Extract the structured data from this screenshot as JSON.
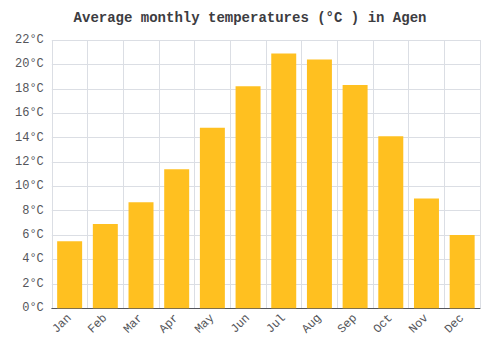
{
  "chart_data": {
    "type": "bar",
    "title": "Average monthly temperatures (°C ) in Agen",
    "categories": [
      "Jan",
      "Feb",
      "Mar",
      "Apr",
      "May",
      "Jun",
      "Jul",
      "Aug",
      "Sep",
      "Oct",
      "Nov",
      "Dec"
    ],
    "values": [
      5.5,
      6.9,
      8.7,
      11.4,
      14.8,
      18.2,
      20.9,
      20.4,
      18.3,
      14.1,
      9.0,
      6.0
    ],
    "color": "#FFC020",
    "ylim": [
      0,
      22
    ],
    "yticks": [
      {
        "value": 0,
        "label": "0°C"
      },
      {
        "value": 2,
        "label": "2°C"
      },
      {
        "value": 4,
        "label": "4°C"
      },
      {
        "value": 6,
        "label": "6°C"
      },
      {
        "value": 8,
        "label": "8°C"
      },
      {
        "value": 10,
        "label": "10°C"
      },
      {
        "value": 12,
        "label": "12°C"
      },
      {
        "value": 14,
        "label": "14°C"
      },
      {
        "value": 16,
        "label": "16°C"
      },
      {
        "value": 18,
        "label": "18°C"
      },
      {
        "value": 20,
        "label": "20°C"
      },
      {
        "value": 22,
        "label": "22°C"
      }
    ],
    "grid": true
  }
}
